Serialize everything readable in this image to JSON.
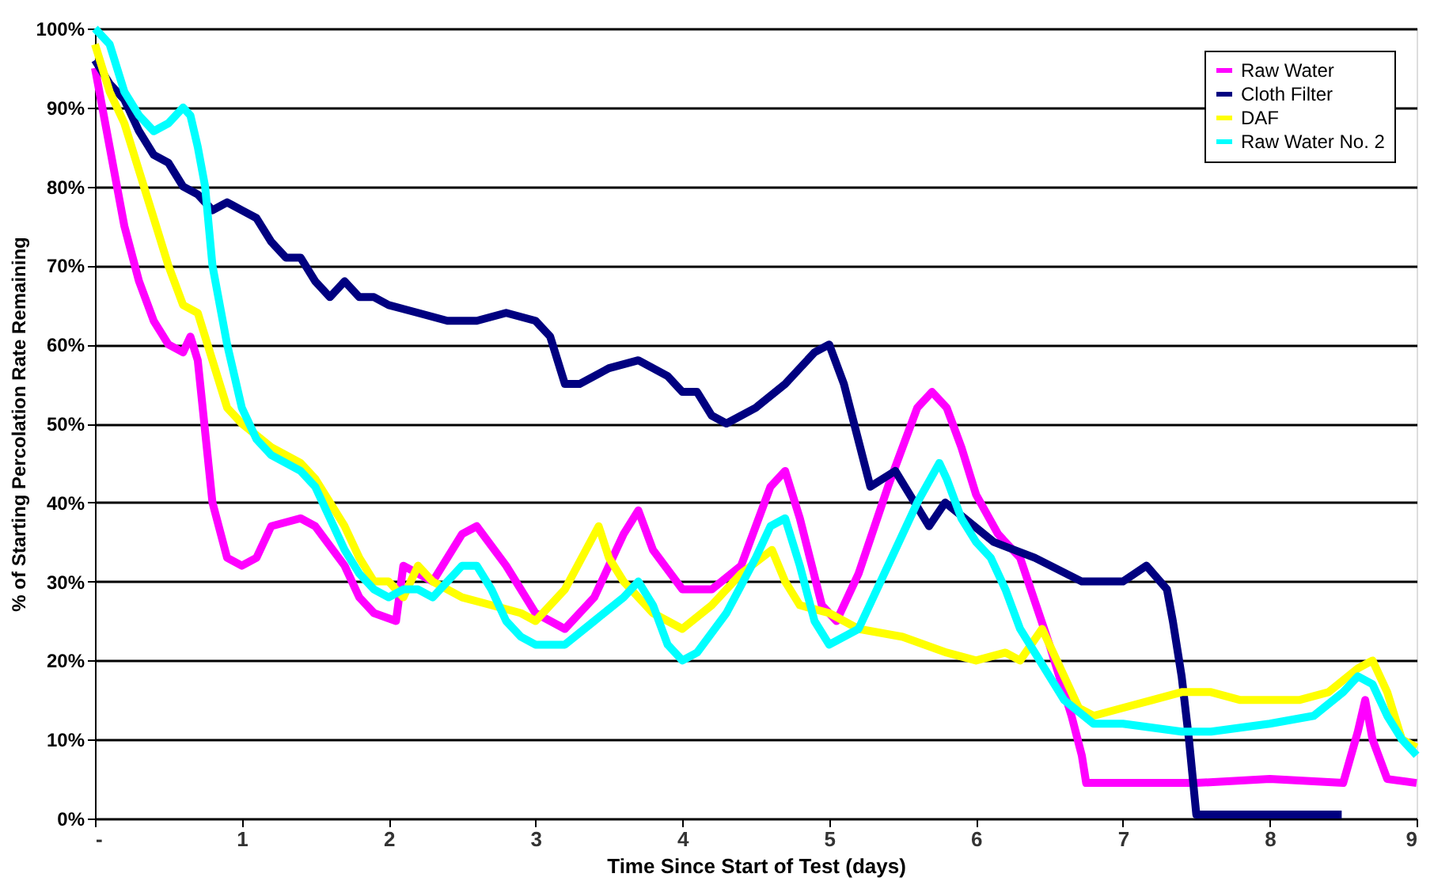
{
  "chart_data": {
    "type": "line",
    "xlabel": "Time Since Start of Test (days)",
    "ylabel": "% of Starting Percolation Rate Remaining",
    "xlim": [
      0,
      9
    ],
    "xticks": [
      {
        "value": 0,
        "label": "-"
      },
      1,
      2,
      3,
      4,
      5,
      6,
      7,
      8,
      9
    ],
    "ylim": [
      0,
      100
    ],
    "yticks": [
      {
        "value": 0,
        "label": "0%"
      },
      {
        "value": 10,
        "label": "10%"
      },
      {
        "value": 20,
        "label": "20%"
      },
      {
        "value": 30,
        "label": "30%"
      },
      {
        "value": 40,
        "label": "40%"
      },
      {
        "value": 50,
        "label": "50%"
      },
      {
        "value": 60,
        "label": "60%"
      },
      {
        "value": 70,
        "label": "70%"
      },
      {
        "value": 80,
        "label": "80%"
      },
      {
        "value": 90,
        "label": "90%"
      },
      {
        "value": 100,
        "label": "100%"
      }
    ],
    "grid": "y",
    "legend": "top right",
    "line_style": "solid",
    "series": [
      {
        "name": "Raw Water",
        "color": "#ff00ff",
        "x": [
          0,
          0.1,
          0.2,
          0.3,
          0.4,
          0.5,
          0.6,
          0.65,
          0.7,
          0.8,
          0.9,
          1.0,
          1.1,
          1.2,
          1.4,
          1.5,
          1.7,
          1.8,
          1.9,
          2.05,
          2.1,
          2.2,
          2.3,
          2.5,
          2.6,
          2.8,
          3.0,
          3.2,
          3.4,
          3.6,
          3.7,
          3.8,
          4.0,
          4.2,
          4.4,
          4.6,
          4.7,
          4.8,
          4.95,
          5.05,
          5.2,
          5.4,
          5.6,
          5.7,
          5.8,
          5.9,
          6.0,
          6.15,
          6.3,
          6.5,
          6.65,
          6.72,
          6.75,
          7.0,
          7.5,
          8.0,
          8.5,
          8.6,
          8.65,
          8.7,
          8.8,
          9.0
        ],
        "values": [
          95,
          85,
          75,
          68,
          63,
          60,
          59,
          61,
          58,
          40,
          33,
          32,
          33,
          37,
          38,
          37,
          32,
          28,
          26,
          25,
          32,
          31,
          30,
          36,
          37,
          32,
          26,
          24,
          28,
          36,
          39,
          34,
          29,
          29,
          32,
          42,
          44,
          38,
          27,
          25,
          31,
          42,
          52,
          54,
          52,
          47,
          41,
          36,
          33,
          22,
          13,
          8,
          4.5,
          4.5,
          4.5,
          5,
          4.5,
          11,
          15,
          10,
          5,
          4.5
        ]
      },
      {
        "name": "Cloth Filter",
        "color": "#000080",
        "x": [
          0,
          0.1,
          0.2,
          0.3,
          0.4,
          0.5,
          0.6,
          0.7,
          0.8,
          0.9,
          1.0,
          1.1,
          1.2,
          1.3,
          1.4,
          1.5,
          1.6,
          1.7,
          1.8,
          1.9,
          2.0,
          2.2,
          2.4,
          2.6,
          2.8,
          3.0,
          3.1,
          3.2,
          3.3,
          3.5,
          3.7,
          3.9,
          4.0,
          4.1,
          4.2,
          4.3,
          4.5,
          4.7,
          4.9,
          5.0,
          5.1,
          5.28,
          5.45,
          5.68,
          5.79,
          6.12,
          6.4,
          6.72,
          7.0,
          7.16,
          7.3,
          7.34,
          7.4,
          7.45,
          7.5,
          8.0,
          8.49
        ],
        "values": [
          96,
          93,
          91,
          87,
          84,
          83,
          80,
          79,
          77,
          78,
          77,
          76,
          73,
          71,
          71,
          68,
          66,
          68,
          66,
          66,
          65,
          64,
          63,
          63,
          64,
          63,
          61,
          55,
          55,
          57,
          58,
          56,
          54,
          54,
          51,
          50,
          52,
          55,
          59,
          60,
          55,
          42,
          44,
          37,
          40,
          35,
          33,
          30,
          30,
          32,
          29,
          25,
          18,
          10,
          0.5,
          0.5,
          0.5
        ]
      },
      {
        "name": "DAF",
        "color": "#ffff00",
        "x": [
          0,
          0.1,
          0.2,
          0.3,
          0.4,
          0.5,
          0.6,
          0.7,
          0.8,
          0.9,
          1.0,
          1.2,
          1.4,
          1.5,
          1.7,
          1.8,
          1.9,
          2.0,
          2.1,
          2.2,
          2.3,
          2.5,
          2.7,
          2.9,
          3.0,
          3.2,
          3.43,
          3.5,
          3.6,
          3.8,
          4.0,
          4.2,
          4.4,
          4.61,
          4.7,
          4.8,
          5.0,
          5.2,
          5.5,
          5.8,
          6.0,
          6.2,
          6.3,
          6.45,
          6.6,
          6.7,
          6.8,
          7.0,
          7.2,
          7.4,
          7.6,
          7.8,
          8.0,
          8.2,
          8.4,
          8.6,
          8.7,
          8.8,
          8.9,
          9.0
        ],
        "values": [
          98,
          92,
          88,
          82,
          76,
          70,
          65,
          64,
          58,
          52,
          50,
          47,
          45,
          43,
          37,
          33,
          30,
          30,
          28,
          32,
          30,
          28,
          27,
          26,
          25,
          29,
          37,
          33,
          30,
          26,
          24,
          27,
          31,
          34,
          30,
          27,
          26,
          24,
          23,
          21,
          20,
          21,
          20,
          24,
          18,
          14,
          13,
          14,
          15,
          16,
          16,
          15,
          15,
          15,
          16,
          19,
          20,
          16,
          10,
          9
        ]
      },
      {
        "name": "Raw Water No. 2",
        "color": "#00ffff",
        "x": [
          0,
          0.1,
          0.2,
          0.3,
          0.4,
          0.5,
          0.6,
          0.65,
          0.7,
          0.75,
          0.8,
          0.9,
          1.0,
          1.1,
          1.2,
          1.4,
          1.5,
          1.6,
          1.7,
          1.8,
          1.9,
          2.0,
          2.1,
          2.2,
          2.3,
          2.5,
          2.6,
          2.7,
          2.8,
          2.9,
          3.0,
          3.2,
          3.4,
          3.6,
          3.7,
          3.8,
          3.9,
          4.0,
          4.1,
          4.3,
          4.5,
          4.6,
          4.7,
          4.8,
          4.9,
          5.0,
          5.2,
          5.4,
          5.6,
          5.75,
          5.8,
          5.9,
          6.0,
          6.1,
          6.2,
          6.3,
          6.4,
          6.5,
          6.6,
          6.8,
          7.0,
          7.4,
          7.6,
          8.0,
          8.3,
          8.5,
          8.6,
          8.7,
          8.8,
          8.9,
          9.0
        ],
        "values": [
          100,
          98,
          92,
          89,
          87,
          88,
          90,
          89,
          85,
          80,
          70,
          60,
          52,
          48,
          46,
          44,
          42,
          38,
          34,
          31,
          29,
          28,
          29,
          29,
          28,
          32,
          32,
          29,
          25,
          23,
          22,
          22,
          25,
          28,
          30,
          27,
          22,
          20,
          21,
          26,
          33,
          37,
          38,
          32,
          25,
          22,
          24,
          32,
          40,
          45,
          43,
          38,
          35,
          33,
          29,
          24,
          21,
          18,
          15,
          12,
          12,
          11,
          11,
          12,
          13,
          16,
          18,
          17,
          13,
          10,
          8
        ]
      }
    ]
  }
}
